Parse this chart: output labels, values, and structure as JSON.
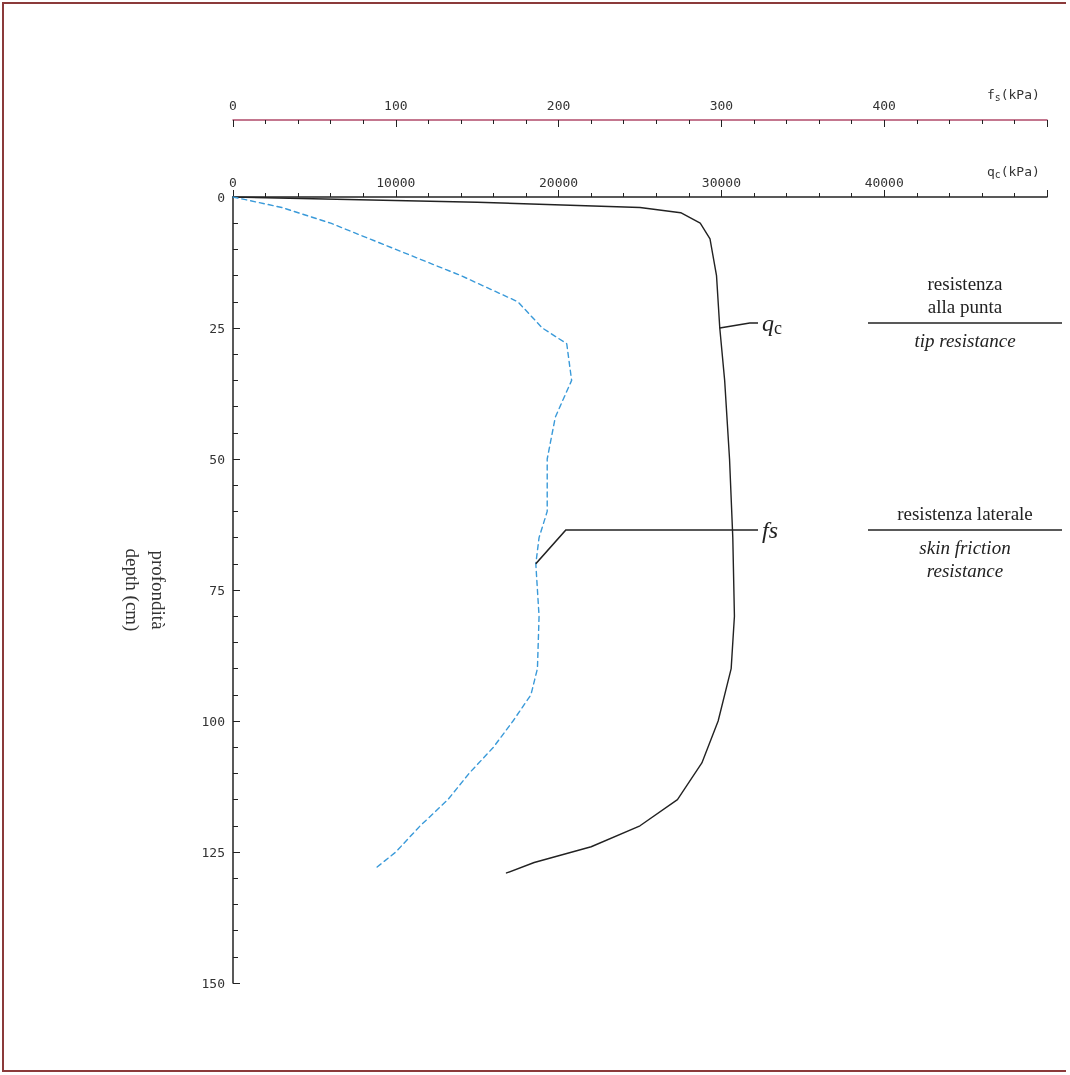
{
  "chart_data": {
    "type": "line",
    "xlabel": "q$_{c}$(kPa)",
    "x2label": "f$_{s}$(kPa)",
    "ylabel": "profondità\ndepth (cm)",
    "xlim": [
      0,
      50000
    ],
    "xticks": [
      0,
      10000,
      20000,
      30000,
      40000,
      {
        "value": 50000,
        "label": null
      }
    ],
    "x2lim": [
      0,
      500
    ],
    "x2ticks": [
      0,
      100,
      200,
      300,
      400,
      {
        "value": 500,
        "label": null
      }
    ],
    "ylim": [
      150,
      0
    ],
    "yticks": [
      0,
      25,
      50,
      75,
      100,
      125,
      150
    ],
    "grid": false,
    "marker": "none",
    "series": [
      {
        "name": "q$_{c}$",
        "color": "#222222",
        "line_style": "solid",
        "x": [
          0,
          15000,
          25000,
          27500,
          28700,
          29300,
          29700,
          29900,
          30200,
          30500,
          30700,
          30800,
          30600,
          29800,
          28800,
          27300,
          25000,
          22000,
          18500,
          16800
        ],
        "values": [
          0,
          1,
          2,
          3,
          5,
          8,
          15,
          25,
          35,
          50,
          65,
          80,
          90,
          100,
          108,
          115,
          120,
          124,
          127,
          129
        ]
      },
      {
        "name": "fs",
        "axis": "x2",
        "color": "#3a9ad9",
        "line_style": "dashed",
        "x": [
          0,
          30,
          60,
          100,
          140,
          175,
          190,
          205,
          208,
          198,
          193,
          193,
          188,
          186,
          188,
          187,
          183,
          172,
          160,
          145,
          132,
          115,
          100,
          88
        ],
        "values": [
          0,
          2,
          5,
          10,
          15,
          20,
          25,
          28,
          35,
          42,
          50,
          60,
          65,
          70,
          80,
          90,
          95,
          100,
          105,
          110,
          115,
          120,
          125,
          128
        ]
      }
    ],
    "annotations": [
      "resistenza\nalla punta",
      "tip resistance",
      "resistenza laterale",
      "skin friction\nresistance"
    ]
  }
}
